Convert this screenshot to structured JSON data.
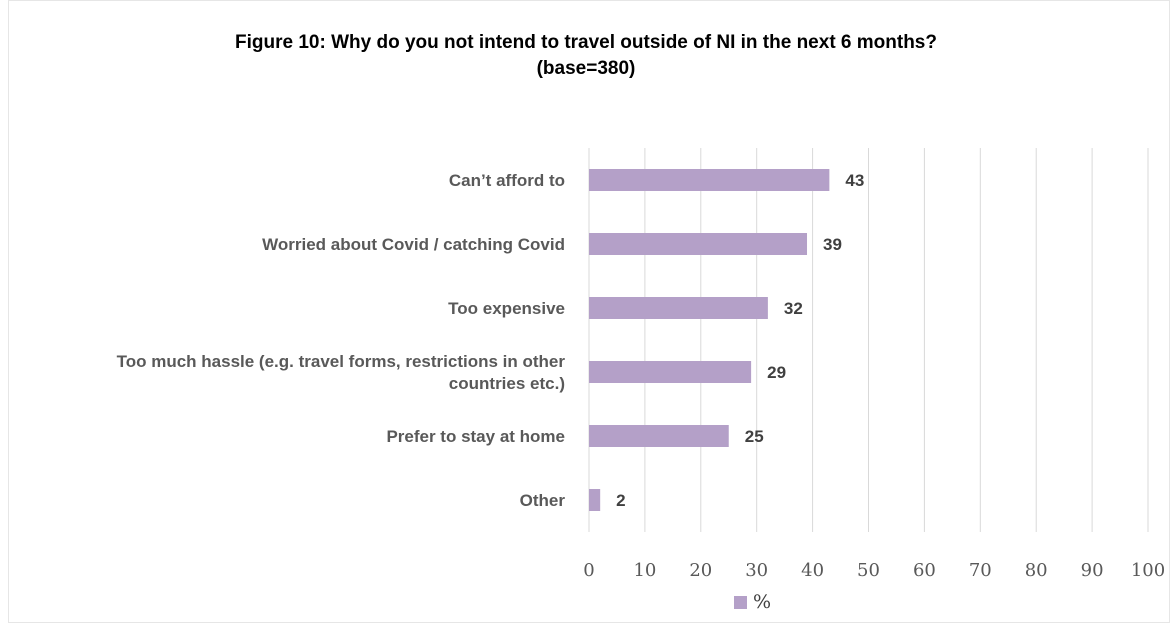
{
  "chart_data": {
    "type": "bar",
    "orientation": "horizontal",
    "title_lines": [
      "Figure 10: Why do you not intend to travel outside of NI in the next 6 months?",
      "(base=380)"
    ],
    "categories": [
      [
        "Can’t afford to"
      ],
      [
        "Worried about Covid / catching Covid"
      ],
      [
        "Too expensive"
      ],
      [
        "Too much hassle (e.g. travel forms, restrictions in other",
        "countries etc.)"
      ],
      [
        "Prefer to stay at home"
      ],
      [
        "Other"
      ]
    ],
    "series": [
      {
        "name": "%",
        "color": "#b4a0c8",
        "values": [
          43,
          39,
          32,
          29,
          25,
          2
        ]
      }
    ],
    "xlim": [
      0,
      100
    ],
    "xticks": [
      0,
      10,
      20,
      30,
      40,
      50,
      60,
      70,
      80,
      90,
      100
    ],
    "grid": true,
    "legend": "bottom-center",
    "data_labels": true
  }
}
